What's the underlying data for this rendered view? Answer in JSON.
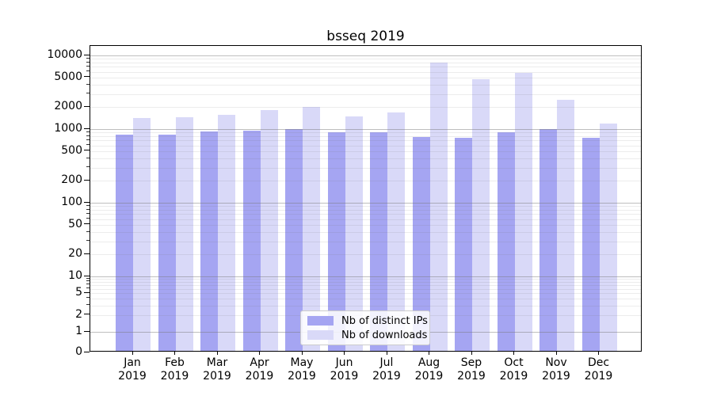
{
  "chart_data": {
    "type": "bar",
    "title": "bsseq 2019",
    "categories": [
      "Jan 2019",
      "Feb 2019",
      "Mar 2019",
      "Apr 2019",
      "May 2019",
      "Jun 2019",
      "Jul 2019",
      "Aug 2019",
      "Sep 2019",
      "Oct 2019",
      "Nov 2019",
      "Dec 2019"
    ],
    "series": [
      {
        "name": "Nb of distinct IPs",
        "color": "#a5a5f2",
        "values": [
          850,
          850,
          920,
          960,
          1000,
          900,
          900,
          780,
          770,
          900,
          990,
          770
        ]
      },
      {
        "name": "Nb of downloads",
        "color": "#d9d9f8",
        "values": [
          1400,
          1450,
          1550,
          1800,
          2000,
          1500,
          1700,
          8000,
          4800,
          5800,
          2500,
          1200
        ]
      }
    ],
    "yticks": [
      0,
      1,
      2,
      5,
      10,
      20,
      50,
      100,
      200,
      500,
      1000,
      2000,
      5000,
      10000
    ],
    "ylim": [
      0,
      10000
    ],
    "yscale": "symlog",
    "xlabel": "",
    "ylabel": "",
    "grid": true,
    "legend_position": "lower center",
    "colors": {
      "major_grid": "#b0b0b0",
      "minor_grid": "#e9e9e9",
      "axis": "#000000",
      "background": "#ffffff"
    }
  }
}
